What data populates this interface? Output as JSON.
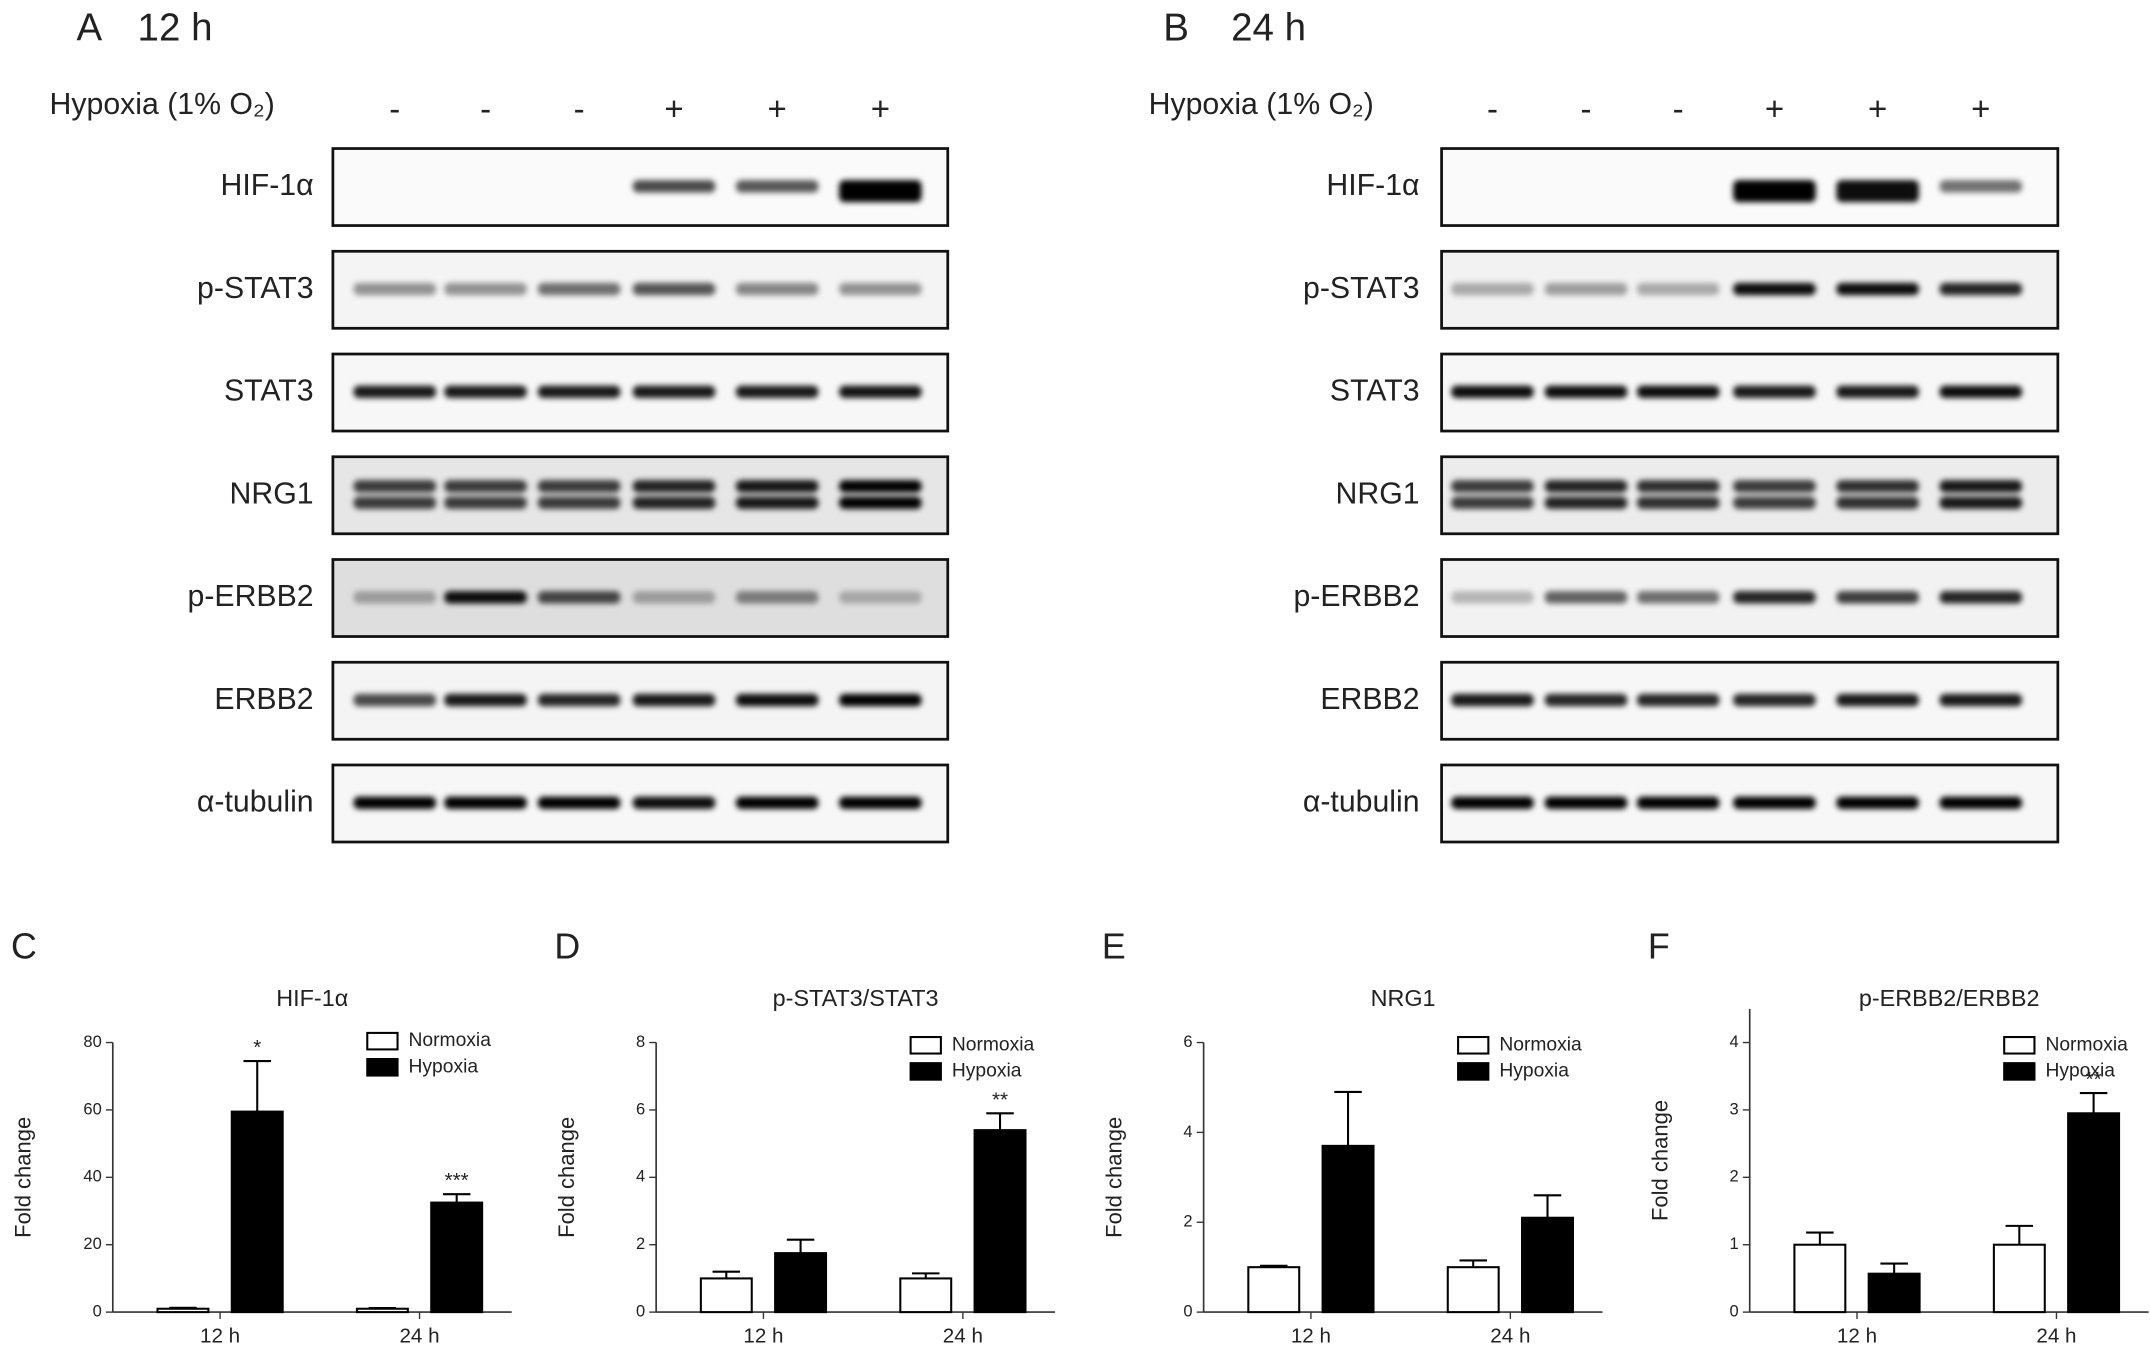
{
  "blots": [
    {
      "panel": "A",
      "time": "12 h",
      "condition_label": "Hypoxia (1% O₂)",
      "lanes": [
        "-",
        "-",
        "-",
        "+",
        "+",
        "+"
      ],
      "proteins": [
        "HIF-1α",
        "p-STAT3",
        "STAT3",
        "NRG1",
        "p-ERBB2",
        "ERBB2",
        "α-tubulin"
      ]
    },
    {
      "panel": "B",
      "time": "24 h",
      "condition_label": "Hypoxia (1% O₂)",
      "lanes": [
        "-",
        "-",
        "-",
        "+",
        "+",
        "+"
      ],
      "proteins": [
        "HIF-1α",
        "p-STAT3",
        "STAT3",
        "NRG1",
        "p-ERBB2",
        "ERBB2",
        "α-tubulin"
      ]
    }
  ],
  "chart_data": [
    {
      "type": "bar",
      "panel": "C",
      "title": "HIF-1α",
      "ylabel": "Fold change",
      "categories": [
        "12 h",
        "24 h"
      ],
      "series": [
        {
          "name": "Normoxia",
          "color": "#ffffff",
          "values": [
            1,
            1
          ],
          "errors": [
            0.3,
            0.2
          ]
        },
        {
          "name": "Hypoxia",
          "color": "#000000",
          "values": [
            59.5,
            32.5
          ],
          "errors": [
            15,
            2.5
          ],
          "significance": [
            "*",
            "***"
          ]
        }
      ],
      "ylim": [
        0,
        80
      ],
      "yticks": [
        0,
        20,
        40,
        60,
        80
      ]
    },
    {
      "type": "bar",
      "panel": "D",
      "title": "p-STAT3/STAT3",
      "ylabel": "Fold change",
      "categories": [
        "12 h",
        "24 h"
      ],
      "series": [
        {
          "name": "Normoxia",
          "color": "#ffffff",
          "values": [
            1,
            1
          ],
          "errors": [
            0.2,
            0.15
          ]
        },
        {
          "name": "Hypoxia",
          "color": "#000000",
          "values": [
            1.75,
            5.4
          ],
          "errors": [
            0.4,
            0.5
          ],
          "significance": [
            null,
            "**"
          ]
        }
      ],
      "ylim": [
        0,
        8
      ],
      "yticks": [
        0,
        2,
        4,
        6,
        8
      ]
    },
    {
      "type": "bar",
      "panel": "E",
      "title": "NRG1",
      "ylabel": "Fold change",
      "categories": [
        "12 h",
        "24 h"
      ],
      "series": [
        {
          "name": "Normoxia",
          "color": "#ffffff",
          "values": [
            1,
            1
          ],
          "errors": [
            0.03,
            0.15
          ]
        },
        {
          "name": "Hypoxia",
          "color": "#000000",
          "values": [
            3.7,
            2.1
          ],
          "errors": [
            1.2,
            0.5
          ]
        }
      ],
      "ylim": [
        0,
        6
      ],
      "yticks": [
        0,
        2,
        4,
        6
      ]
    },
    {
      "type": "bar",
      "panel": "F",
      "title": "p-ERBB2/ERBB2",
      "ylabel": "Fold change",
      "categories": [
        "12 h",
        "24 h"
      ],
      "series": [
        {
          "name": "Normoxia",
          "color": "#ffffff",
          "values": [
            1,
            1
          ],
          "errors": [
            0.18,
            0.28
          ]
        },
        {
          "name": "Hypoxia",
          "color": "#000000",
          "values": [
            0.57,
            2.95
          ],
          "errors": [
            0.15,
            0.3
          ],
          "significance": [
            null,
            "**"
          ]
        }
      ],
      "ylim": [
        0,
        4.5
      ],
      "yticks": [
        0,
        1,
        2,
        3,
        4
      ]
    }
  ]
}
